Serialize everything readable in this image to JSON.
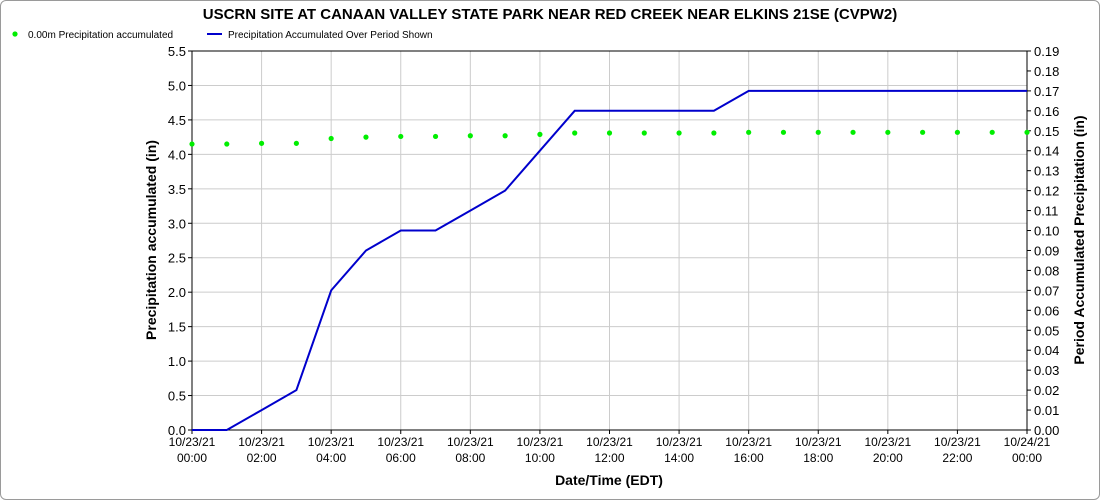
{
  "chart_data": {
    "type": "line",
    "title": "USCRN SITE AT CANAAN VALLEY STATE PARK NEAR RED CREEK NEAR ELKINS 21SE (CVPW2)",
    "xlabel": "Date/Time (EDT)",
    "ylabel_left": "Precipitation accumulated (in)",
    "ylabel_right": "Period Accumulated Precipitation (in)",
    "ylim_left": [
      0,
      5.5
    ],
    "ylim_right": [
      0,
      0.19
    ],
    "yticks_left": [
      "0.0",
      "0.5",
      "1.0",
      "1.5",
      "2.0",
      "2.5",
      "3.0",
      "3.5",
      "4.0",
      "4.5",
      "5.0",
      "5.5"
    ],
    "yticks_right": [
      "0.00",
      "0.01",
      "0.02",
      "0.03",
      "0.04",
      "0.05",
      "0.06",
      "0.07",
      "0.08",
      "0.09",
      "0.10",
      "0.11",
      "0.12",
      "0.13",
      "0.14",
      "0.15",
      "0.16",
      "0.17",
      "0.18",
      "0.19"
    ],
    "xtick_labels": [
      [
        "10/23/21",
        "00:00"
      ],
      [
        "10/23/21",
        "02:00"
      ],
      [
        "10/23/21",
        "04:00"
      ],
      [
        "10/23/21",
        "06:00"
      ],
      [
        "10/23/21",
        "08:00"
      ],
      [
        "10/23/21",
        "10:00"
      ],
      [
        "10/23/21",
        "12:00"
      ],
      [
        "10/23/21",
        "14:00"
      ],
      [
        "10/23/21",
        "16:00"
      ],
      [
        "10/23/21",
        "18:00"
      ],
      [
        "10/23/21",
        "20:00"
      ],
      [
        "10/23/21",
        "22:00"
      ],
      [
        "10/24/21",
        "00:00"
      ]
    ],
    "grid": true,
    "legend_position": "top-left",
    "series": [
      {
        "name": "0.00m Precipitation accumulated",
        "style": "dots",
        "color": "#00ee00",
        "axis": "left",
        "x": [
          "10/23/21 00:00",
          "10/23/21 01:00",
          "10/23/21 02:00",
          "10/23/21 03:00",
          "10/23/21 04:00",
          "10/23/21 05:00",
          "10/23/21 06:00",
          "10/23/21 07:00",
          "10/23/21 08:00",
          "10/23/21 09:00",
          "10/23/21 10:00",
          "10/23/21 11:00",
          "10/23/21 12:00",
          "10/23/21 13:00",
          "10/23/21 14:00",
          "10/23/21 15:00",
          "10/23/21 16:00",
          "10/23/21 17:00",
          "10/23/21 18:00",
          "10/23/21 19:00",
          "10/23/21 20:00",
          "10/23/21 21:00",
          "10/23/21 22:00",
          "10/23/21 23:00",
          "10/24/21 00:00"
        ],
        "values": [
          4.15,
          4.15,
          4.16,
          4.16,
          4.23,
          4.25,
          4.26,
          4.26,
          4.27,
          4.27,
          4.29,
          4.31,
          4.31,
          4.31,
          4.31,
          4.31,
          4.32,
          4.32,
          4.32,
          4.32,
          4.32,
          4.32,
          4.32,
          4.32,
          4.32
        ]
      },
      {
        "name": "Precipitation Accumulated Over Period Shown",
        "style": "line",
        "color": "#0000cc",
        "axis": "right",
        "x": [
          "10/23/21 00:00",
          "10/23/21 01:00",
          "10/23/21 02:00",
          "10/23/21 03:00",
          "10/23/21 04:00",
          "10/23/21 05:00",
          "10/23/21 06:00",
          "10/23/21 07:00",
          "10/23/21 08:00",
          "10/23/21 09:00",
          "10/23/21 10:00",
          "10/23/21 11:00",
          "10/23/21 12:00",
          "10/23/21 13:00",
          "10/23/21 14:00",
          "10/23/21 15:00",
          "10/23/21 16:00",
          "10/23/21 17:00",
          "10/23/21 18:00",
          "10/23/21 19:00",
          "10/23/21 20:00",
          "10/23/21 21:00",
          "10/23/21 22:00",
          "10/23/21 23:00",
          "10/24/21 00:00"
        ],
        "values": [
          0.0,
          0.0,
          0.01,
          0.02,
          0.07,
          0.09,
          0.1,
          0.1,
          0.11,
          0.12,
          0.14,
          0.16,
          0.16,
          0.16,
          0.16,
          0.16,
          0.17,
          0.17,
          0.17,
          0.17,
          0.17,
          0.17,
          0.17,
          0.17,
          0.17
        ]
      }
    ]
  }
}
